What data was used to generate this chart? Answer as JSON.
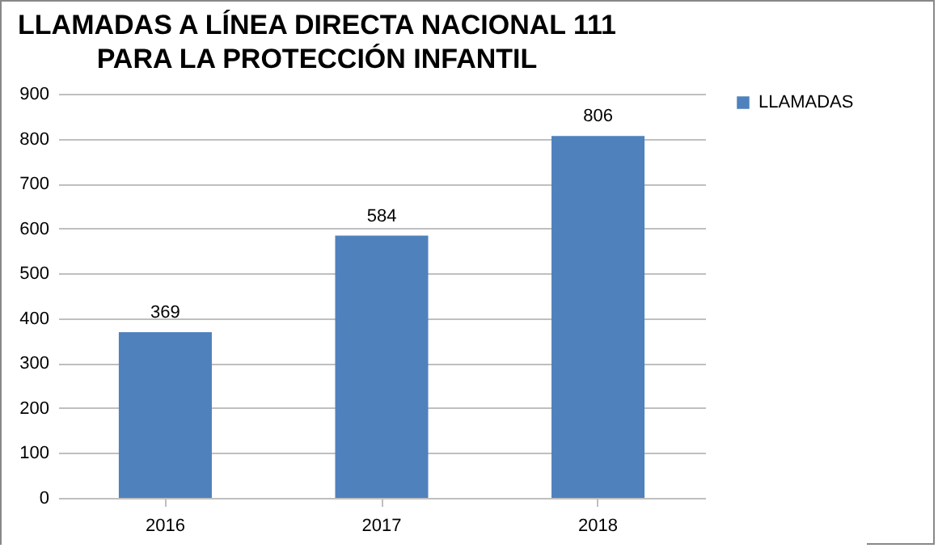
{
  "chart_data": {
    "type": "bar",
    "title": "LLAMADAS A LÍNEA DIRECTA NACIONAL 111\nPARA LA PROTECCIÓN INFANTIL",
    "categories": [
      "2016",
      "2017",
      "2018"
    ],
    "series": [
      {
        "name": "LLAMADAS",
        "color": "#4f81bd",
        "values": [
          369,
          584,
          806
        ]
      }
    ],
    "ylim": [
      0,
      900
    ],
    "yticks": [
      0,
      100,
      200,
      300,
      400,
      500,
      600,
      700,
      800,
      900
    ],
    "grid": "y",
    "legend": "right",
    "data_labels": true
  }
}
